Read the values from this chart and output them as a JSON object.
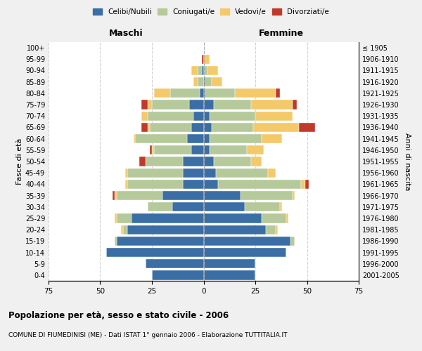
{
  "age_groups": [
    "0-4",
    "5-9",
    "10-14",
    "15-19",
    "20-24",
    "25-29",
    "30-34",
    "35-39",
    "40-44",
    "45-49",
    "50-54",
    "55-59",
    "60-64",
    "65-69",
    "70-74",
    "75-79",
    "80-84",
    "85-89",
    "90-94",
    "95-99",
    "100+"
  ],
  "birth_years": [
    "2001-2005",
    "1996-2000",
    "1991-1995",
    "1986-1990",
    "1981-1985",
    "1976-1980",
    "1971-1975",
    "1966-1970",
    "1961-1965",
    "1956-1960",
    "1951-1955",
    "1946-1950",
    "1941-1945",
    "1936-1940",
    "1931-1935",
    "1926-1930",
    "1921-1925",
    "1916-1920",
    "1911-1915",
    "1906-1910",
    "≤ 1905"
  ],
  "maschi": {
    "celibi": [
      25,
      28,
      47,
      42,
      37,
      35,
      15,
      20,
      10,
      10,
      10,
      6,
      8,
      6,
      5,
      7,
      2,
      0,
      1,
      0,
      0
    ],
    "coniugati": [
      0,
      0,
      0,
      1,
      2,
      7,
      12,
      22,
      27,
      27,
      18,
      18,
      25,
      20,
      22,
      18,
      14,
      3,
      2,
      0,
      0
    ],
    "vedovi": [
      0,
      0,
      0,
      0,
      1,
      1,
      0,
      1,
      1,
      1,
      0,
      1,
      1,
      1,
      3,
      2,
      8,
      2,
      3,
      0,
      0
    ],
    "divorziati": [
      0,
      0,
      0,
      0,
      0,
      0,
      0,
      1,
      0,
      0,
      3,
      1,
      0,
      3,
      0,
      3,
      0,
      0,
      0,
      1,
      0
    ]
  },
  "femmine": {
    "nubili": [
      25,
      25,
      40,
      42,
      30,
      28,
      20,
      18,
      7,
      6,
      5,
      3,
      3,
      4,
      3,
      5,
      1,
      1,
      0,
      0,
      0
    ],
    "coniugate": [
      0,
      0,
      0,
      2,
      5,
      12,
      17,
      25,
      40,
      25,
      18,
      18,
      25,
      20,
      22,
      18,
      14,
      3,
      2,
      0,
      0
    ],
    "vedove": [
      0,
      0,
      0,
      0,
      1,
      1,
      1,
      1,
      2,
      4,
      5,
      8,
      10,
      22,
      18,
      20,
      20,
      5,
      5,
      3,
      0
    ],
    "divorziate": [
      0,
      0,
      0,
      0,
      0,
      0,
      0,
      0,
      2,
      0,
      0,
      0,
      0,
      8,
      0,
      2,
      2,
      0,
      0,
      0,
      0
    ]
  },
  "colors": {
    "celibi": "#3a6ea5",
    "coniugati": "#b5c99a",
    "vedovi": "#f4c96a",
    "divorziati": "#c0392b"
  },
  "xlim": 75,
  "title": "Popolazione per età, sesso e stato civile - 2006",
  "subtitle": "COMUNE DI FIUMEDINISI (ME) - Dati ISTAT 1° gennaio 2006 - Elaborazione TUTTITALIA.IT",
  "ylabel_left": "Fasce di età",
  "ylabel_right": "Anni di nascita",
  "xlabel_maschi": "Maschi",
  "xlabel_femmine": "Femmine",
  "bg_color": "#f0f0f0",
  "plot_bg": "#ffffff",
  "grid_color": "#cccccc"
}
